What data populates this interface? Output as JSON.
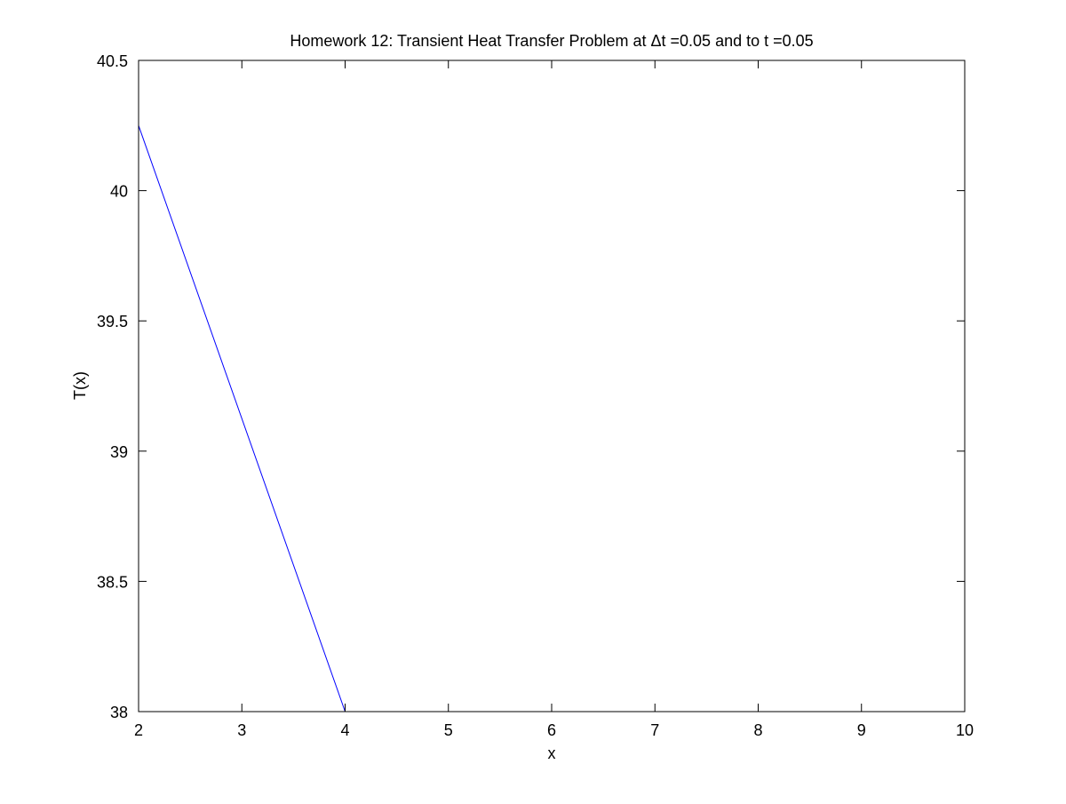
{
  "chart_data": {
    "type": "line",
    "title": "Homework 12: Transient Heat Transfer Problem at Δt =0.05 and to t =0.05",
    "xlabel": "x",
    "ylabel": "T(x)",
    "xlim": [
      2,
      10
    ],
    "ylim": [
      38,
      40.5
    ],
    "xticks": [
      2,
      3,
      4,
      5,
      6,
      7,
      8,
      9,
      10
    ],
    "yticks": [
      38,
      38.5,
      39,
      39.5,
      40,
      40.5
    ],
    "xtick_labels": [
      "2",
      "3",
      "4",
      "5",
      "6",
      "7",
      "8",
      "9",
      "10"
    ],
    "ytick_labels": [
      "38",
      "38.5",
      "39",
      "39.5",
      "40",
      "40.5"
    ],
    "grid": false,
    "series": [
      {
        "color": "#0000ff",
        "x": [
          2,
          4
        ],
        "y": [
          40.25,
          38.0
        ]
      }
    ]
  }
}
